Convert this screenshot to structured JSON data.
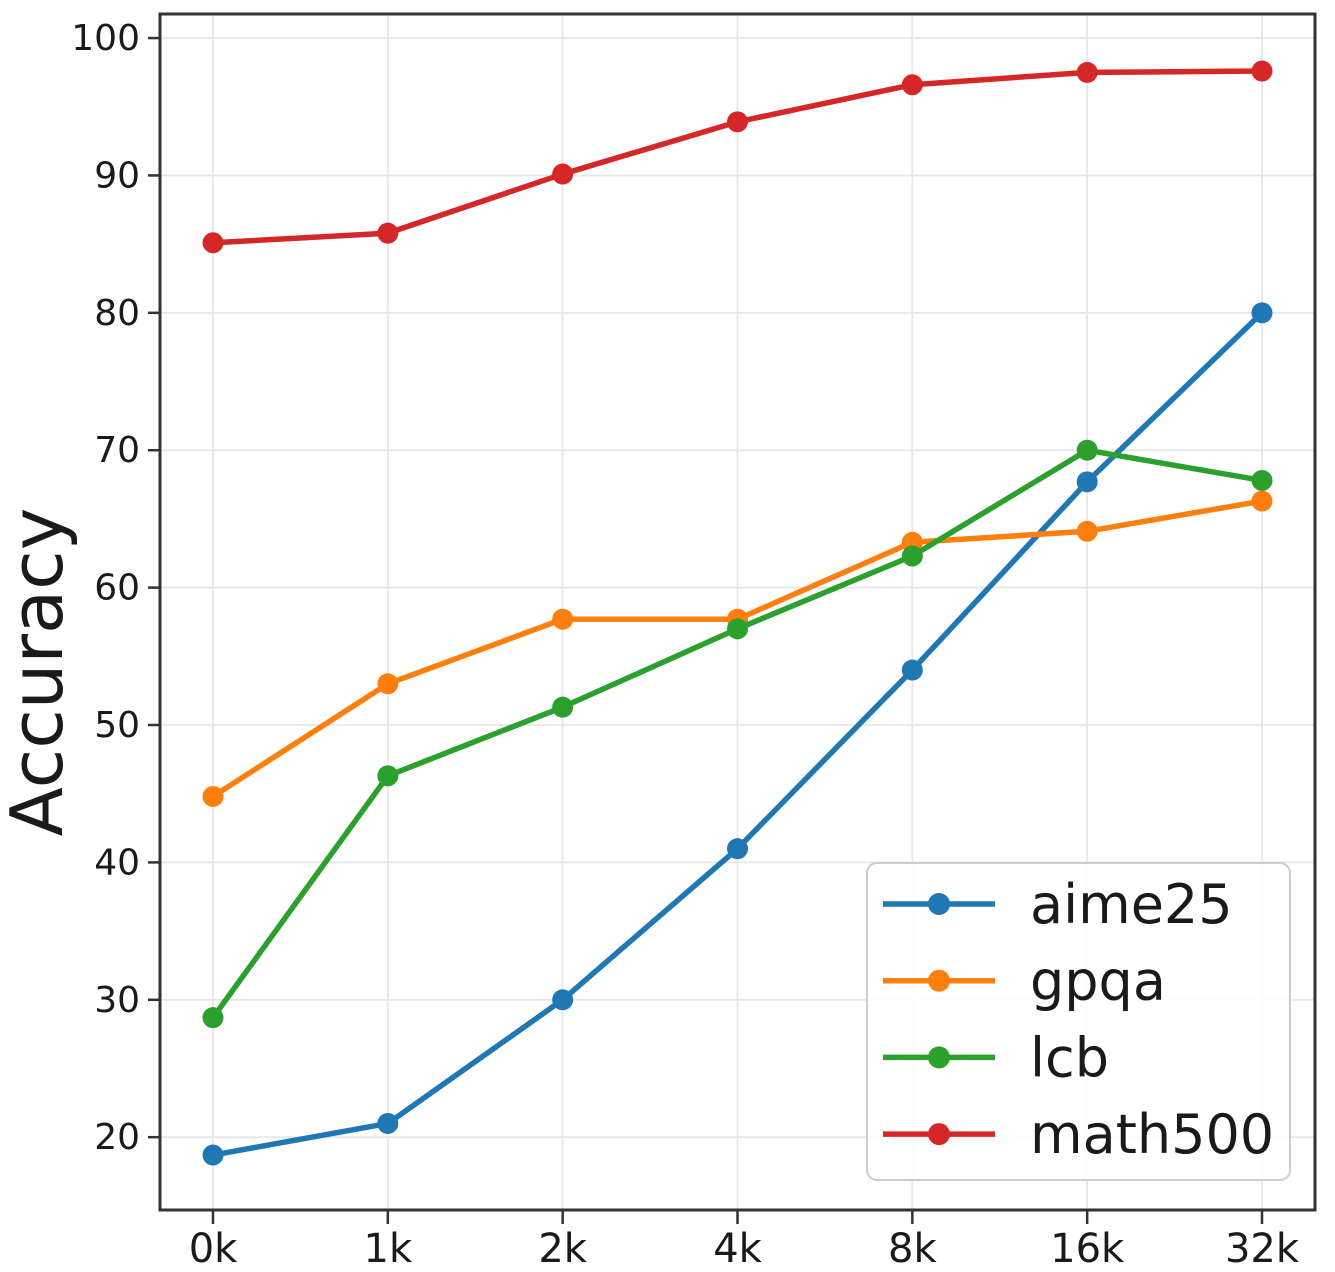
{
  "figure": {
    "background": "#ffffff"
  },
  "chart_data": {
    "type": "line",
    "title": "",
    "xlabel": "",
    "ylabel": "Accuracy",
    "categories": [
      "0k",
      "1k",
      "2k",
      "4k",
      "8k",
      "16k",
      "32k"
    ],
    "y_ticks": [
      20,
      30,
      40,
      50,
      60,
      70,
      80,
      90,
      100
    ],
    "ylim": [
      14.7,
      101.75
    ],
    "grid": true,
    "legend_position": "lower-right",
    "series": [
      {
        "name": "aime25",
        "color": "#1f77b4",
        "values": [
          18.7,
          21.0,
          30.0,
          41.0,
          54.0,
          67.7,
          80.0
        ]
      },
      {
        "name": "gpqa",
        "color": "#ff7f0e",
        "values": [
          44.8,
          53.0,
          57.7,
          57.7,
          63.3,
          64.1,
          66.3
        ]
      },
      {
        "name": "lcb",
        "color": "#2ca02c",
        "values": [
          28.7,
          46.3,
          51.3,
          57.0,
          62.3,
          70.0,
          67.8
        ]
      },
      {
        "name": "math500",
        "color": "#d62728",
        "values": [
          85.1,
          85.8,
          90.1,
          93.9,
          96.6,
          97.5,
          97.6
        ]
      }
    ],
    "styles": {
      "grid_color": "#e7e7e7",
      "spine_color": "#333333",
      "text_color": "#1a1a1a",
      "legend_border_color": "#cccccc",
      "legend_fill": "rgba(255,255,255,0.85)"
    }
  }
}
